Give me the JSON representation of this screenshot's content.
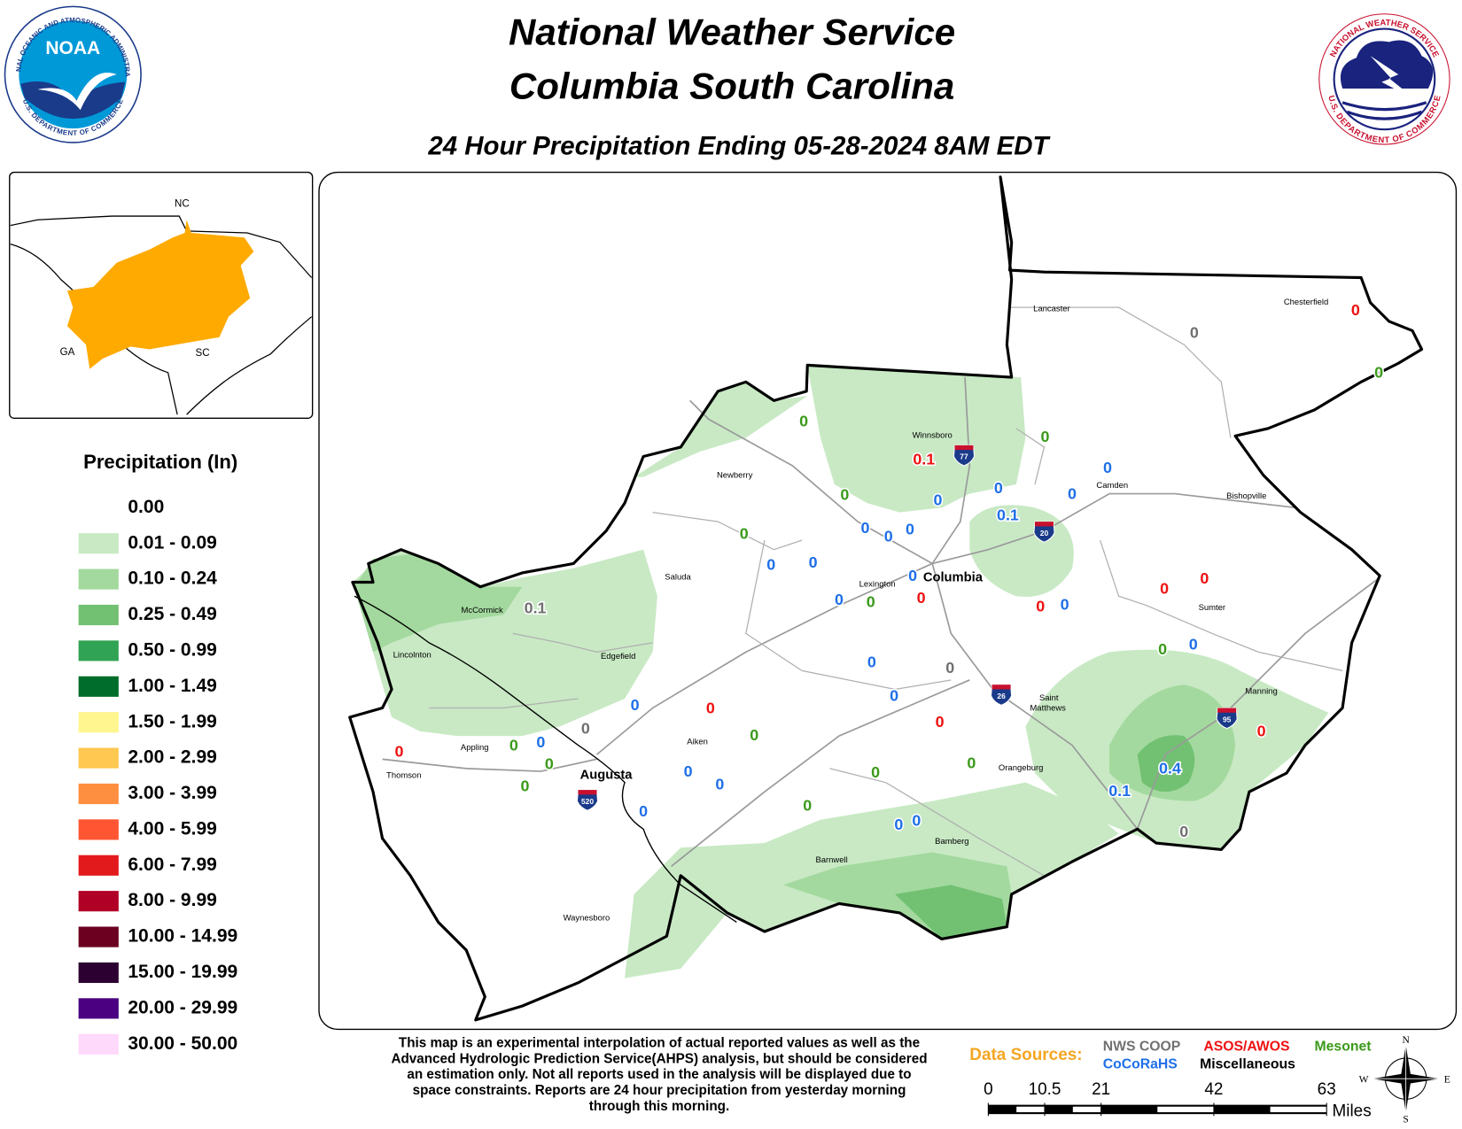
{
  "header": {
    "title_line1": "National Weather Service",
    "title_line2": "Columbia South Carolina",
    "subtitle": "24 Hour Precipitation Ending 05-28-2024 8AM EDT"
  },
  "logos": {
    "noaa": {
      "abbr": "NOAA",
      "ring_top": "NATIONAL OCEANIC AND ATMOSPHERIC ADMINISTRATION",
      "ring_bottom": "U.S. DEPARTMENT OF COMMERCE"
    },
    "nws": {
      "ring_top": "NATIONAL WEATHER SERVICE",
      "ring_bottom": "U.S. DEPARTMENT OF COMMERCE"
    }
  },
  "inset": {
    "labels": [
      "NC",
      "GA",
      "SC"
    ],
    "highlight_color": "#ffaa00"
  },
  "legend": {
    "title": "Precipitation (In)",
    "entries": [
      {
        "label": "0.00"
      },
      {
        "label": "0.01 - 0.09",
        "color": "#c8e9c4"
      },
      {
        "label": "0.10 - 0.24",
        "color": "#a3d99e"
      },
      {
        "label": "0.25 - 0.49",
        "color": "#72c173"
      },
      {
        "label": "0.50 - 0.99",
        "color": "#31a354"
      },
      {
        "label": "1.00 - 1.49",
        "color": "#006d2c"
      },
      {
        "label": "1.50 - 1.99",
        "color": "#fff68f"
      },
      {
        "label": "2.00 - 2.99",
        "color": "#ffc850"
      },
      {
        "label": "3.00 - 3.99",
        "color": "#ff8f40"
      },
      {
        "label": "4.00 - 5.99",
        "color": "#ff5533"
      },
      {
        "label": "6.00 - 7.99",
        "color": "#e31a1c"
      },
      {
        "label": "8.00 - 9.99",
        "color": "#b10026"
      },
      {
        "label": "10.00 - 14.99",
        "color": "#6b0020"
      },
      {
        "label": "15.00 - 19.99",
        "color": "#2c0030"
      },
      {
        "label": "20.00 - 29.99",
        "color": "#4a0080"
      },
      {
        "label": "30.00 - 50.00",
        "color": "#ffd9fb"
      }
    ]
  },
  "map": {
    "cities": [
      "Lancaster",
      "Chesterfield",
      "Winnsboro",
      "Camden",
      "Bishopville",
      "Newberry",
      "Saluda",
      "Lexington",
      "Columbia",
      "Sumter",
      "McCormick",
      "Edgefield",
      "Lincolnton",
      "Saint",
      "Matthews",
      "Manning",
      "Appling",
      "Aiken",
      "Thomson",
      "Augusta",
      "Orangeburg",
      "Barnwell",
      "Bamberg",
      "Waynesboro"
    ],
    "interstates": [
      "77",
      "20",
      "26",
      "95",
      "520"
    ],
    "stations": [
      {
        "value": 0,
        "source": 0
      },
      {
        "value": 0,
        "source": 0
      },
      {
        "value": 0,
        "source": 0
      },
      {
        "value": 0,
        "source": 0
      },
      {
        "value": 0.1,
        "source": 0
      },
      {
        "value": 0,
        "source": 1
      },
      {
        "value": 0.1,
        "source": 1
      },
      {
        "value": 0,
        "source": 1
      },
      {
        "value": 0,
        "source": 1
      },
      {
        "value": 0,
        "source": 1
      },
      {
        "value": 0,
        "source": 1
      },
      {
        "value": 0,
        "source": 1
      },
      {
        "value": 0,
        "source": 1
      },
      {
        "value": 0,
        "source": 1
      },
      {
        "value": 0,
        "source": 1
      },
      {
        "value": 0,
        "source": 2
      },
      {
        "value": 0,
        "source": 2
      },
      {
        "value": 0,
        "source": 2
      },
      {
        "value": 0,
        "source": 2
      },
      {
        "value": 0,
        "source": 2
      },
      {
        "value": 0,
        "source": 2
      },
      {
        "value": 0,
        "source": 2
      },
      {
        "value": 0,
        "source": 2
      },
      {
        "value": 0,
        "source": 2
      },
      {
        "value": 0,
        "source": 2
      },
      {
        "value": 0,
        "source": 2
      },
      {
        "value": 0,
        "source": 2
      },
      {
        "value": 0,
        "source": 2
      },
      {
        "value": 0,
        "source": 2
      },
      {
        "value": 0,
        "source": 3
      },
      {
        "value": 0,
        "source": 3
      },
      {
        "value": 0,
        "source": 3
      },
      {
        "value": 0,
        "source": 3
      },
      {
        "value": 0.1,
        "source": 3
      },
      {
        "value": 0,
        "source": 3
      },
      {
        "value": 0,
        "source": 3
      },
      {
        "value": 0,
        "source": 3
      },
      {
        "value": 0,
        "source": 3
      },
      {
        "value": 0,
        "source": 3
      },
      {
        "value": 0,
        "source": 3
      },
      {
        "value": 0,
        "source": 3
      },
      {
        "value": 0,
        "source": 3
      },
      {
        "value": 0,
        "source": 3
      },
      {
        "value": 0,
        "source": 3
      },
      {
        "value": 0,
        "source": 3
      },
      {
        "value": 0,
        "source": 3
      },
      {
        "value": 0,
        "source": 3
      },
      {
        "value": 0,
        "source": 3
      },
      {
        "value": 0,
        "source": 3
      },
      {
        "value": 0,
        "source": 3
      },
      {
        "value": 0,
        "source": 3
      },
      {
        "value": 0,
        "source": 3
      },
      {
        "value": 0.4,
        "source": 3
      },
      {
        "value": 0.1,
        "source": 3
      }
    ]
  },
  "footer": {
    "disclaimer": [
      "This map is an experimental interpolation of actual reported values as well as the",
      "Advanced Hydrologic Prediction Service(AHPS) analysis, but should be considered",
      "an estimation only. Not all reports used in the analysis will be displayed due to",
      "space constraints. Reports are 24 hour precipitation from yesterday morning",
      "through this morning."
    ],
    "data_sources_label": "Data Sources:",
    "data_sources": [
      {
        "label": "NWS COOP",
        "color": "#707070"
      },
      {
        "label": "ASOS/AWOS",
        "color": "#ee1111"
      },
      {
        "label": "Mesonet",
        "color": "#3a9a1a"
      },
      {
        "label": "CoCoRaHS",
        "color": "#1e6fe8"
      },
      {
        "label": "Miscellaneous",
        "color": "#000000"
      }
    ],
    "scale": {
      "ticks": [
        0,
        10.5,
        21,
        42,
        63
      ],
      "unit": "Miles"
    },
    "compass": [
      "N",
      "E",
      "S",
      "W"
    ]
  }
}
